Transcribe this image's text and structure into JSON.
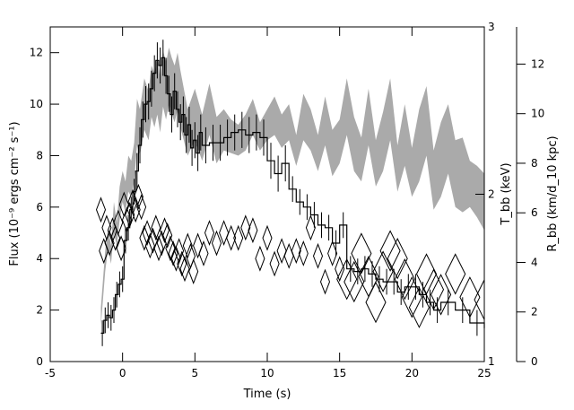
{
  "chart_data": {
    "type": "line",
    "xlabel": "Time (s)",
    "ylabel_left": "Flux (10⁻⁹ ergs cm⁻² s⁻¹)",
    "ylabel_mid": "T_bb (keV)",
    "ylabel_right": "R_bb (km/d_10 kpc)",
    "xlim": [
      -5,
      25
    ],
    "ylim_left": [
      0,
      13
    ],
    "ylim_mid": [
      1,
      3
    ],
    "ylim_right": [
      0,
      13.5
    ],
    "x_ticks": [
      -5,
      0,
      5,
      10,
      15,
      20,
      25
    ],
    "y_left_ticks": [
      0,
      2,
      4,
      6,
      8,
      10,
      12
    ],
    "y_mid_ticks": [
      1,
      2,
      3
    ],
    "y_right_ticks": [
      0,
      2,
      4,
      6,
      8,
      10,
      12
    ],
    "series": [
      {
        "kind": "band",
        "color": "#aaaaaa",
        "x": [
          -1.5,
          -1.2,
          -1.0,
          -0.8,
          -0.6,
          -0.4,
          -0.2,
          0.0,
          0.2,
          0.4,
          0.6,
          0.8,
          1.0,
          1.2,
          1.5,
          1.8,
          2.0,
          2.2,
          2.4,
          2.6,
          2.8,
          3.0,
          3.2,
          3.4,
          3.6,
          3.8,
          4.0,
          4.5,
          5.0,
          5.5,
          6.0,
          6.5,
          7.0,
          7.5,
          8.0,
          8.5,
          9.0,
          9.5,
          10.0,
          10.5,
          11.0,
          11.5,
          12.0,
          12.5,
          13.0,
          13.5,
          14.0,
          14.5,
          15.0,
          15.5,
          16.0,
          16.5,
          17.0,
          17.5,
          18.0,
          18.5,
          19.0,
          19.5,
          20.0,
          20.5,
          21.0,
          21.5,
          22.0,
          22.5,
          23.0,
          23.5,
          24.0,
          24.5,
          25.0
        ],
        "upper": [
          2.1,
          4.3,
          5.2,
          4.5,
          6.2,
          5.4,
          6.8,
          7.4,
          7.0,
          8.0,
          7.8,
          8.5,
          10.2,
          9.8,
          11.0,
          10.5,
          11.5,
          11.2,
          11.8,
          11.0,
          12.1,
          11.6,
          12.2,
          11.8,
          11.5,
          12.0,
          11.3,
          9.8,
          10.6,
          9.6,
          10.8,
          9.5,
          9.8,
          9.4,
          9.2,
          9.6,
          10.2,
          9.3,
          9.8,
          10.3,
          9.6,
          10.0,
          8.8,
          10.4,
          9.8,
          8.8,
          10.3,
          9.0,
          9.4,
          11.0,
          9.5,
          8.7,
          10.6,
          8.6,
          9.7,
          11.0,
          8.4,
          10.0,
          8.3,
          9.8,
          10.7,
          8.2,
          9.3,
          10.0,
          8.6,
          8.7,
          7.8,
          7.6,
          7.3
        ],
        "lower": [
          1.4,
          3.5,
          4.4,
          3.8,
          5.0,
          4.5,
          5.5,
          6.2,
          5.8,
          6.6,
          6.4,
          7.0,
          8.4,
          8.0,
          9.0,
          8.6,
          9.5,
          9.1,
          9.6,
          8.9,
          9.9,
          9.4,
          10.0,
          9.6,
          9.3,
          9.8,
          9.1,
          8.0,
          8.6,
          7.8,
          8.8,
          7.7,
          8.2,
          8.1,
          8.0,
          8.2,
          8.8,
          8.2,
          8.6,
          8.8,
          8.3,
          8.6,
          7.6,
          8.6,
          8.2,
          7.4,
          8.4,
          7.2,
          7.7,
          8.8,
          7.4,
          7.0,
          8.4,
          6.8,
          7.4,
          8.6,
          6.6,
          7.6,
          6.4,
          7.0,
          8.0,
          5.9,
          6.4,
          7.3,
          6.0,
          5.8,
          6.0,
          5.6,
          5.1
        ]
      },
      {
        "kind": "step",
        "color": "#000000",
        "x": [
          -1.5,
          -1.3,
          -1.1,
          -0.9,
          -0.7,
          -0.5,
          -0.3,
          -0.1,
          0.1,
          0.3,
          0.5,
          0.7,
          0.9,
          1.1,
          1.3,
          1.5,
          1.7,
          1.9,
          2.1,
          2.3,
          2.5,
          2.7,
          2.9,
          3.1,
          3.3,
          3.5,
          3.7,
          3.9,
          4.1,
          4.3,
          4.5,
          4.7,
          4.9,
          5.1,
          5.3,
          5.5,
          6.0,
          6.5,
          7.0,
          7.5,
          8.0,
          8.5,
          9.0,
          9.5,
          10.0,
          10.5,
          11.0,
          11.5,
          12.0,
          12.5,
          13.0,
          13.5,
          14.0,
          14.5,
          15.0,
          15.5,
          16.0,
          16.5,
          17.0,
          17.5,
          18.0,
          18.5,
          19.0,
          19.5,
          20.0,
          20.5,
          21.0,
          21.5,
          22.0,
          23.0,
          24.0,
          25.0
        ],
        "y": [
          1.1,
          1.6,
          1.8,
          1.7,
          2.0,
          2.6,
          3.0,
          3.2,
          4.7,
          5.2,
          5.9,
          6.6,
          7.4,
          8.4,
          9.4,
          10.0,
          10.1,
          10.6,
          11.2,
          11.7,
          11.5,
          11.8,
          11.1,
          10.4,
          9.6,
          10.5,
          9.8,
          9.3,
          9.6,
          8.8,
          9.2,
          8.3,
          8.6,
          8.1,
          8.9,
          8.4,
          8.5,
          8.5,
          8.7,
          8.9,
          9.0,
          8.8,
          8.9,
          8.7,
          7.8,
          7.3,
          7.7,
          6.7,
          6.2,
          6.0,
          5.7,
          5.3,
          5.2,
          4.6,
          5.3,
          3.6,
          3.5,
          3.6,
          3.4,
          3.2,
          3.1,
          3.1,
          2.7,
          2.9,
          2.9,
          2.6,
          2.3,
          2.0,
          2.3,
          2.0,
          1.5,
          1.3
        ],
        "err": 0.5
      },
      {
        "kind": "diamonds",
        "color": "#000000",
        "x": [
          -1.5,
          -1.3,
          -1.1,
          -0.9,
          -0.7,
          -0.5,
          -0.3,
          -0.1,
          0.1,
          0.3,
          0.5,
          0.7,
          0.9,
          1.1,
          1.3,
          1.5,
          1.7,
          1.9,
          2.1,
          2.3,
          2.5,
          2.7,
          2.9,
          3.1,
          3.3,
          3.5,
          3.7,
          3.9,
          4.1,
          4.3,
          4.5,
          4.7,
          4.9,
          5.2,
          5.6,
          6.0,
          6.5,
          7.0,
          7.5,
          8.0,
          8.5,
          9.0,
          9.5,
          10.0,
          10.5,
          11.0,
          11.5,
          12.0,
          12.5,
          13.0,
          13.5,
          14.0,
          14.5,
          15.0,
          15.5,
          16.0,
          16.5,
          17.0,
          17.5,
          18.0,
          18.5,
          19.0,
          19.5,
          20.0,
          20.5,
          21.0,
          21.5,
          22.0,
          23.0,
          24.0,
          25.0
        ],
        "y": [
          5.9,
          4.3,
          5.2,
          4.6,
          5.1,
          4.8,
          5.4,
          4.4,
          6.1,
          5.5,
          5.7,
          6.2,
          5.9,
          6.4,
          6.0,
          4.8,
          5.0,
          4.5,
          4.7,
          5.2,
          4.4,
          4.6,
          5.1,
          4.9,
          4.4,
          4.2,
          4.0,
          4.3,
          3.8,
          3.6,
          4.5,
          4.1,
          3.5,
          4.5,
          4.2,
          5.0,
          4.6,
          5.0,
          4.8,
          4.8,
          5.2,
          5.1,
          4.0,
          4.8,
          3.8,
          4.3,
          4.1,
          4.3,
          4.2,
          5.2,
          4.1,
          3.1,
          4.2,
          3.6,
          3.2,
          3.1,
          4.2,
          3.3,
          2.3,
          3.5,
          4.3,
          4.0,
          3.2,
          2.5,
          2.1,
          3.4,
          2.8,
          2.6,
          3.4,
          2.5,
          2.4
        ],
        "size": 0.35
      }
    ]
  }
}
